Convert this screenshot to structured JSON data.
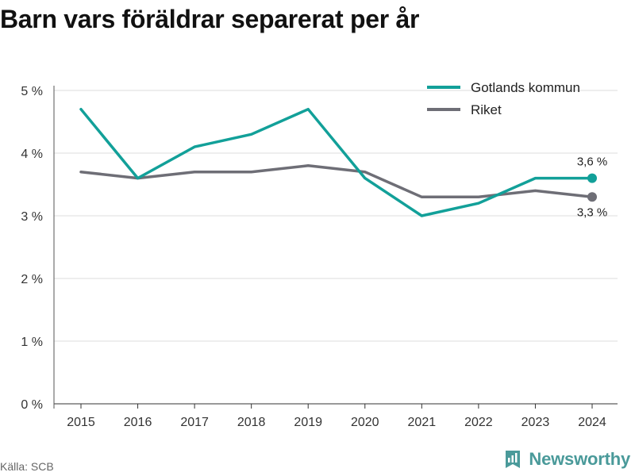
{
  "title": "Barn vars föräldrar separerat per år",
  "source": "Källa: SCB",
  "brand": "Newsworthy",
  "colors": {
    "gotland": "#12a099",
    "riket": "#6e6e76",
    "grid": "#dddddd",
    "brand": "#4a9a9a"
  },
  "chart_data": {
    "type": "line",
    "x": [
      "2015",
      "2016",
      "2017",
      "2018",
      "2019",
      "2020",
      "2021",
      "2022",
      "2023",
      "2024"
    ],
    "series": [
      {
        "name": "Gotlands kommun",
        "values": [
          4.7,
          3.6,
          4.1,
          4.3,
          4.7,
          3.6,
          3.0,
          3.2,
          3.6,
          3.6
        ],
        "color": "#12a099",
        "end_label": "3,6 %"
      },
      {
        "name": "Riket",
        "values": [
          3.7,
          3.6,
          3.7,
          3.7,
          3.8,
          3.7,
          3.3,
          3.3,
          3.4,
          3.3
        ],
        "color": "#6e6e76",
        "end_label": "3,3 %"
      }
    ],
    "ylim": [
      0,
      5
    ],
    "yticks": [
      0,
      1,
      2,
      3,
      4,
      5
    ],
    "ytick_labels": [
      "0 %",
      "1 %",
      "2 %",
      "3 %",
      "4 %",
      "5 %"
    ],
    "grid": true,
    "legend_position": "top-right"
  }
}
